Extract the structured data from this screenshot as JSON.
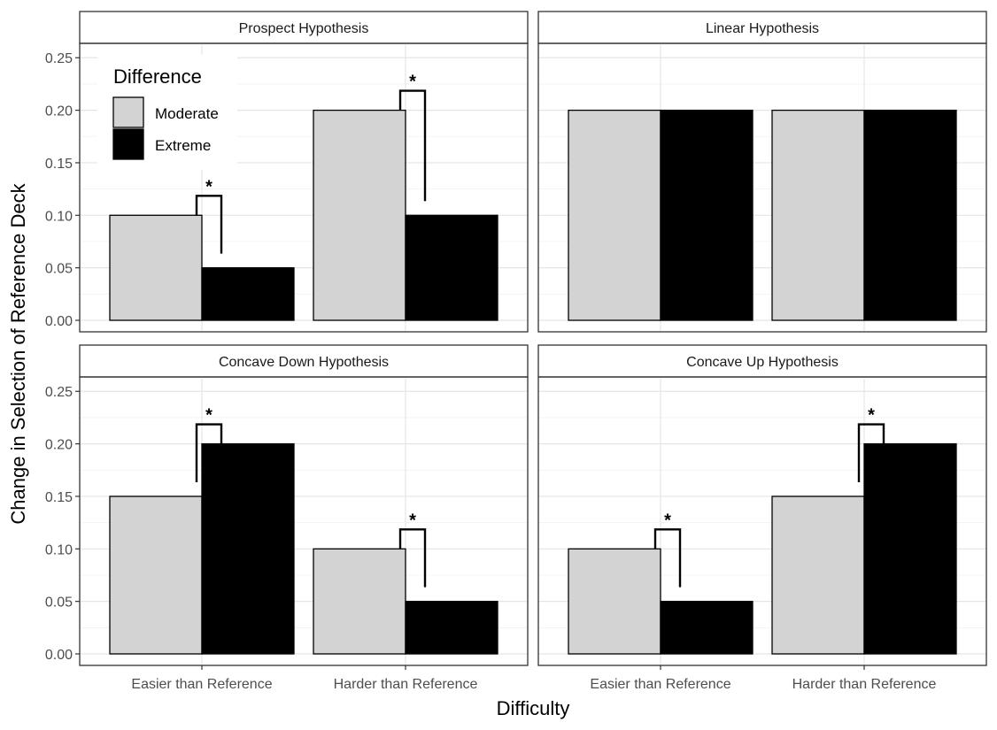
{
  "chart_data": {
    "type": "bar",
    "layout": "facet grid 2x2, shared axes",
    "xlabel": "Difficulty",
    "ylabel": "Change in Selection of Reference Deck",
    "categories": [
      "Easier than Reference",
      "Harder than Reference"
    ],
    "ylim": [
      0,
      0.262
    ],
    "yticks": [
      0.0,
      0.05,
      0.1,
      0.15,
      0.2,
      0.25
    ],
    "ytick_labels": [
      "0.00",
      "0.05",
      "0.10",
      "0.15",
      "0.20",
      "0.25"
    ],
    "grid": true,
    "colors": {
      "Moderate": "#d3d3d3",
      "Extreme": "#000000"
    },
    "legend": {
      "title": "Difference",
      "position": "top-left (inside first panel)",
      "entries": [
        "Moderate",
        "Extreme"
      ]
    },
    "panels": [
      {
        "title": "Prospect Hypothesis",
        "series": [
          {
            "name": "Moderate",
            "values": [
              0.1,
              0.2
            ]
          },
          {
            "name": "Extreme",
            "values": [
              0.05,
              0.1
            ]
          }
        ],
        "significance": [
          true,
          true
        ]
      },
      {
        "title": "Linear Hypothesis",
        "series": [
          {
            "name": "Moderate",
            "values": [
              0.2,
              0.2
            ]
          },
          {
            "name": "Extreme",
            "values": [
              0.2,
              0.2
            ]
          }
        ],
        "significance": [
          false,
          false
        ]
      },
      {
        "title": "Concave Down Hypothesis",
        "series": [
          {
            "name": "Moderate",
            "values": [
              0.15,
              0.1
            ]
          },
          {
            "name": "Extreme",
            "values": [
              0.2,
              0.05
            ]
          }
        ],
        "significance": [
          true,
          true
        ]
      },
      {
        "title": "Concave Up Hypothesis",
        "series": [
          {
            "name": "Moderate",
            "values": [
              0.1,
              0.15
            ]
          },
          {
            "name": "Extreme",
            "values": [
              0.05,
              0.2
            ]
          }
        ],
        "significance": [
          true,
          true
        ]
      }
    ],
    "significance_marker": "*"
  }
}
